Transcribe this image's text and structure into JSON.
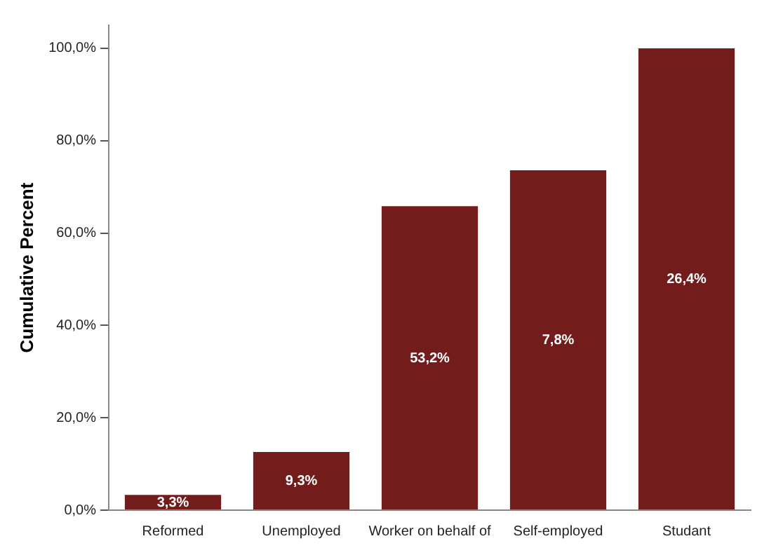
{
  "chart_data": {
    "type": "bar",
    "ylabel": "Cumulative Percent",
    "categories": [
      "Reformed",
      "Unemployed",
      "Worker on behalf of",
      "Self-employed",
      "Studant"
    ],
    "values": [
      3.3,
      12.6,
      65.8,
      73.6,
      100
    ],
    "annotations": [
      "3,3%",
      "9,3%",
      "53,2%",
      "7,8%",
      "26,4%"
    ],
    "color": "#731c1c",
    "ylim": [
      0,
      105
    ],
    "yticks": [
      {
        "value": 0,
        "label": "0,0%"
      },
      {
        "value": 20,
        "label": "20,0%"
      },
      {
        "value": 40,
        "label": "40,0%"
      },
      {
        "value": 60,
        "label": "60,0%"
      },
      {
        "value": 80,
        "label": "80,0%"
      },
      {
        "value": 100,
        "label": "100,0%"
      }
    ],
    "grid": false
  }
}
